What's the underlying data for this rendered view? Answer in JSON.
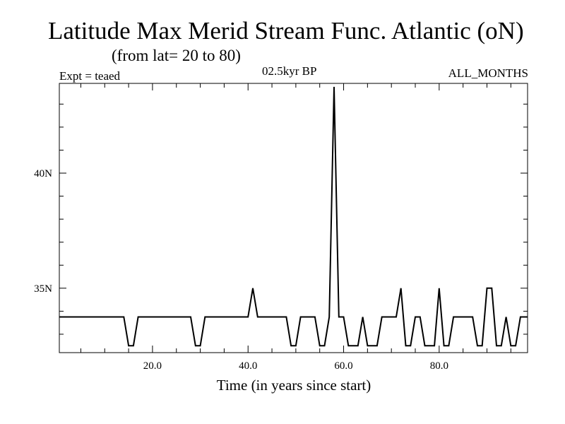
{
  "header": {
    "title": "Latitude Max Merid Stream Func. Atlantic (oN)",
    "subtitle": "(from lat= 20 to 80)",
    "expt": "Expt = teaed",
    "period": "02.5kyr BP",
    "months": "ALL_MONTHS"
  },
  "chart_data": {
    "type": "line",
    "title": "Latitude Max Merid Stream Func. Atlantic (oN)",
    "xlabel": "Time (in years since start)",
    "ylabel": "",
    "xlim": [
      0.5,
      98.5
    ],
    "ylim": [
      32.2,
      43.9
    ],
    "x_ticks": [
      20,
      40,
      60,
      80
    ],
    "x_tick_labels": [
      "20.0",
      "40.0",
      "60.0",
      "80.0"
    ],
    "y_ticks": [
      35,
      40
    ],
    "y_tick_labels": [
      "35N",
      "40N"
    ],
    "series": [
      {
        "name": "teaed",
        "color": "#000000",
        "x": [
          1,
          2,
          3,
          4,
          5,
          6,
          7,
          8,
          9,
          10,
          11,
          12,
          13,
          14,
          15,
          16,
          17,
          18,
          19,
          20,
          21,
          22,
          23,
          24,
          25,
          26,
          27,
          28,
          29,
          30,
          31,
          32,
          33,
          34,
          35,
          36,
          37,
          38,
          39,
          40,
          41,
          42,
          43,
          44,
          45,
          46,
          47,
          48,
          49,
          50,
          51,
          52,
          53,
          54,
          55,
          56,
          57,
          58,
          59,
          60,
          61,
          62,
          63,
          64,
          65,
          66,
          67,
          68,
          69,
          70,
          71,
          72,
          73,
          74,
          75,
          76,
          77,
          78,
          79,
          80,
          81,
          82,
          83,
          84,
          85,
          86,
          87,
          88,
          89,
          90,
          91,
          92,
          93,
          94,
          95,
          96,
          97,
          98
        ],
        "values": [
          33.75,
          33.75,
          33.75,
          33.75,
          33.75,
          33.75,
          33.75,
          33.75,
          33.75,
          33.75,
          33.75,
          33.75,
          33.75,
          33.75,
          32.5,
          32.5,
          33.75,
          33.75,
          33.75,
          33.75,
          33.75,
          33.75,
          33.75,
          33.75,
          33.75,
          33.75,
          33.75,
          33.75,
          32.5,
          32.5,
          33.75,
          33.75,
          33.75,
          33.75,
          33.75,
          33.75,
          33.75,
          33.75,
          33.75,
          33.75,
          35.0,
          33.75,
          33.75,
          33.75,
          33.75,
          33.75,
          33.75,
          33.75,
          32.5,
          32.5,
          33.75,
          33.75,
          33.75,
          33.75,
          32.5,
          32.5,
          33.75,
          43.75,
          33.75,
          33.75,
          32.5,
          32.5,
          32.5,
          33.75,
          32.5,
          32.5,
          32.5,
          33.75,
          33.75,
          33.75,
          33.75,
          35.0,
          32.5,
          32.5,
          33.75,
          33.75,
          32.5,
          32.5,
          32.5,
          35.0,
          32.5,
          32.5,
          33.75,
          33.75,
          33.75,
          33.75,
          33.75,
          32.5,
          32.5,
          35.0,
          35.0,
          32.5,
          32.5,
          33.75,
          32.5,
          32.5,
          33.75,
          33.75
        ]
      }
    ]
  }
}
